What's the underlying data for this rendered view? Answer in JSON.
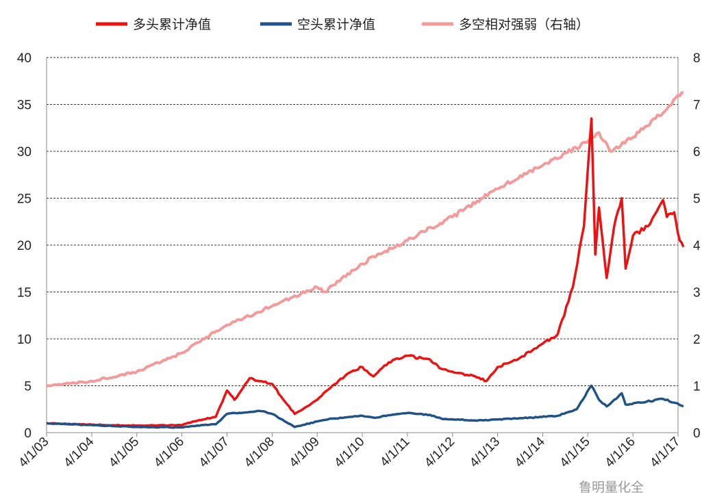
{
  "chart_data": {
    "type": "line",
    "legend_position": "top",
    "grid": "horizontal-dashed",
    "x_ticks": [
      "4/1/03",
      "4/1/04",
      "4/1/05",
      "4/1/06",
      "4/1/07",
      "4/1/08",
      "4/1/09",
      "4/1/10",
      "4/1/11",
      "4/1/12",
      "4/1/13",
      "4/1/14",
      "4/1/15",
      "4/1/16",
      "4/1/17"
    ],
    "xlim": [
      "2003-04-01",
      "2017-04-01"
    ],
    "y_left": {
      "ylim": [
        0,
        40
      ],
      "ticks": [
        "0",
        "5",
        "10",
        "15",
        "20",
        "25",
        "30",
        "35",
        "40"
      ]
    },
    "y_right": {
      "ylim": [
        0,
        8
      ],
      "ticks": [
        "0",
        "1",
        "2",
        "3",
        "4",
        "5",
        "6",
        "7",
        "8"
      ]
    },
    "series": [
      {
        "name": "多头累计净值",
        "axis": "left",
        "color": "#ee1111",
        "points": [
          [
            "2003-04-01",
            1.0
          ],
          [
            "2004-04-01",
            0.85
          ],
          [
            "2005-04-01",
            0.75
          ],
          [
            "2006-04-01",
            0.8
          ],
          [
            "2006-07-01",
            1.2
          ],
          [
            "2007-01-01",
            1.7
          ],
          [
            "2007-04-01",
            4.5
          ],
          [
            "2007-06-01",
            3.5
          ],
          [
            "2007-10-01",
            5.8
          ],
          [
            "2008-01-01",
            5.5
          ],
          [
            "2008-04-01",
            5.2
          ],
          [
            "2008-07-01",
            3.5
          ],
          [
            "2008-10-01",
            2.0
          ],
          [
            "2009-04-01",
            3.5
          ],
          [
            "2009-08-01",
            5.0
          ],
          [
            "2010-01-01",
            6.5
          ],
          [
            "2010-04-01",
            7.0
          ],
          [
            "2010-07-01",
            6.0
          ],
          [
            "2010-11-01",
            7.5
          ],
          [
            "2011-04-01",
            8.2
          ],
          [
            "2011-10-01",
            7.8
          ],
          [
            "2012-01-01",
            6.8
          ],
          [
            "2012-04-01",
            6.5
          ],
          [
            "2012-10-01",
            6.0
          ],
          [
            "2013-01-01",
            5.5
          ],
          [
            "2013-04-01",
            7.0
          ],
          [
            "2013-10-01",
            8.0
          ],
          [
            "2014-04-01",
            9.5
          ],
          [
            "2014-08-01",
            10.5
          ],
          [
            "2014-12-01",
            15.5
          ],
          [
            "2015-03-01",
            22.0
          ],
          [
            "2015-05-01",
            33.5
          ],
          [
            "2015-06-01",
            19.0
          ],
          [
            "2015-07-01",
            24.0
          ],
          [
            "2015-09-01",
            16.5
          ],
          [
            "2015-11-01",
            22.0
          ],
          [
            "2016-01-01",
            25.0
          ],
          [
            "2016-02-01",
            17.5
          ],
          [
            "2016-04-01",
            21.0
          ],
          [
            "2016-08-01",
            22.0
          ],
          [
            "2016-12-01",
            24.8
          ],
          [
            "2017-01-01",
            23.0
          ],
          [
            "2017-03-01",
            23.5
          ],
          [
            "2017-04-15",
            20.5
          ],
          [
            "2017-05-15",
            19.8
          ]
        ]
      },
      {
        "name": "空头累计净值",
        "axis": "left",
        "color": "#1f5287",
        "points": [
          [
            "2003-04-01",
            1.0
          ],
          [
            "2004-04-01",
            0.8
          ],
          [
            "2005-04-01",
            0.6
          ],
          [
            "2006-04-01",
            0.55
          ],
          [
            "2006-07-01",
            0.7
          ],
          [
            "2007-01-01",
            0.9
          ],
          [
            "2007-04-01",
            2.0
          ],
          [
            "2007-10-01",
            2.2
          ],
          [
            "2008-01-01",
            2.3
          ],
          [
            "2008-04-01",
            2.0
          ],
          [
            "2008-10-01",
            0.6
          ],
          [
            "2009-04-01",
            1.2
          ],
          [
            "2009-08-01",
            1.5
          ],
          [
            "2010-04-01",
            1.8
          ],
          [
            "2010-07-01",
            1.6
          ],
          [
            "2011-04-01",
            2.1
          ],
          [
            "2011-10-01",
            1.9
          ],
          [
            "2012-01-01",
            1.5
          ],
          [
            "2012-10-01",
            1.3
          ],
          [
            "2013-04-01",
            1.4
          ],
          [
            "2014-01-01",
            1.6
          ],
          [
            "2014-08-01",
            1.8
          ],
          [
            "2015-01-01",
            2.5
          ],
          [
            "2015-05-01",
            5.0
          ],
          [
            "2015-07-01",
            3.5
          ],
          [
            "2015-09-01",
            2.8
          ],
          [
            "2015-11-01",
            3.5
          ],
          [
            "2016-01-01",
            4.2
          ],
          [
            "2016-02-01",
            3.0
          ],
          [
            "2016-06-01",
            3.2
          ],
          [
            "2016-12-01",
            3.6
          ],
          [
            "2017-03-01",
            3.2
          ],
          [
            "2017-05-15",
            2.8
          ]
        ]
      },
      {
        "name": "多空相对强弱（右轴）",
        "axis": "right",
        "color": "#f49a9a",
        "points": [
          [
            "2003-04-01",
            1.0
          ],
          [
            "2004-04-01",
            1.1
          ],
          [
            "2005-04-01",
            1.3
          ],
          [
            "2006-04-01",
            1.7
          ],
          [
            "2006-10-01",
            2.0
          ],
          [
            "2007-04-01",
            2.3
          ],
          [
            "2008-04-01",
            2.7
          ],
          [
            "2009-04-01",
            3.1
          ],
          [
            "2009-06-01",
            3.0
          ],
          [
            "2010-04-01",
            3.6
          ],
          [
            "2010-08-01",
            3.8
          ],
          [
            "2011-04-01",
            4.1
          ],
          [
            "2012-04-01",
            4.6
          ],
          [
            "2013-04-01",
            5.2
          ],
          [
            "2014-04-01",
            5.7
          ],
          [
            "2015-04-01",
            6.2
          ],
          [
            "2015-07-01",
            6.4
          ],
          [
            "2015-10-01",
            6.0
          ],
          [
            "2016-04-01",
            6.3
          ],
          [
            "2016-10-01",
            6.7
          ],
          [
            "2017-01-01",
            6.9
          ],
          [
            "2017-04-01",
            7.2
          ],
          [
            "2017-05-15",
            7.25
          ]
        ]
      }
    ]
  },
  "legend": [
    {
      "label": "多头累计净值",
      "color": "#ee1111"
    },
    {
      "label": "空头累计净值",
      "color": "#1f5287"
    },
    {
      "label": "多空相对强弱（右轴）",
      "color": "#f49a9a"
    }
  ],
  "watermark": "鲁明量化全"
}
